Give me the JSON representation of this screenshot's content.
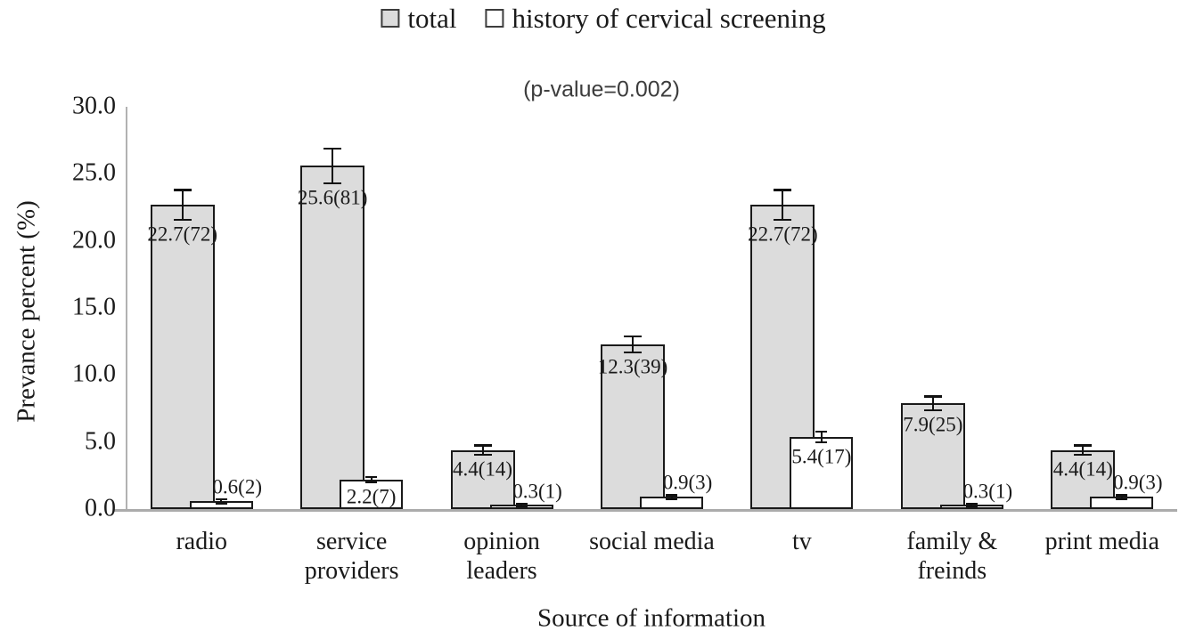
{
  "chart_data": {
    "type": "bar",
    "title": "",
    "annotation": "(p-value=0.002)",
    "xlabel": "Source of information",
    "ylabel": "Prevance percent (%)",
    "categories": [
      "radio",
      "service providers",
      "opinion leaders",
      "social media",
      "tv",
      "family & freinds",
      "print media"
    ],
    "category_display_lines": [
      "radio",
      "service\nproviders",
      "opinion\nleaders",
      "social media",
      "tv",
      "family &\nfreinds",
      "print media"
    ],
    "series": [
      {
        "name": "total",
        "fill": "#dcdcdc",
        "values": [
          22.7,
          25.6,
          4.4,
          12.3,
          22.7,
          7.9,
          4.4
        ],
        "counts": [
          72,
          81,
          14,
          39,
          72,
          25,
          14
        ],
        "data_labels": [
          "22.7(72)",
          "25.6(81)",
          "4.4(14)",
          "12.3(39)",
          "22.7(72)",
          "7.9(25)",
          "4.4(14)"
        ],
        "errors": [
          1.1,
          1.3,
          0.35,
          0.6,
          1.1,
          0.5,
          0.35
        ]
      },
      {
        "name": "history of cervical screening",
        "fill": "#ffffff",
        "values": [
          0.6,
          2.2,
          0.3,
          0.9,
          5.4,
          0.3,
          0.9
        ],
        "counts": [
          2,
          7,
          1,
          3,
          17,
          1,
          3
        ],
        "data_labels": [
          "0.6(2)",
          "2.2(7)",
          "0.3(1)",
          "0.9(3)",
          "5.4(17)",
          "0.3(1)",
          "0.9(3)"
        ],
        "errors": [
          0.15,
          0.2,
          0.1,
          0.15,
          0.4,
          0.1,
          0.15
        ]
      }
    ],
    "ylim": [
      0,
      30
    ],
    "ytick_step": 5,
    "ytick_labels": [
      "0.0",
      "5.0",
      "10.0",
      "15.0",
      "20.0",
      "25.0",
      "30.0"
    ],
    "grid": false,
    "legend_position": "top",
    "error_bars": true
  }
}
